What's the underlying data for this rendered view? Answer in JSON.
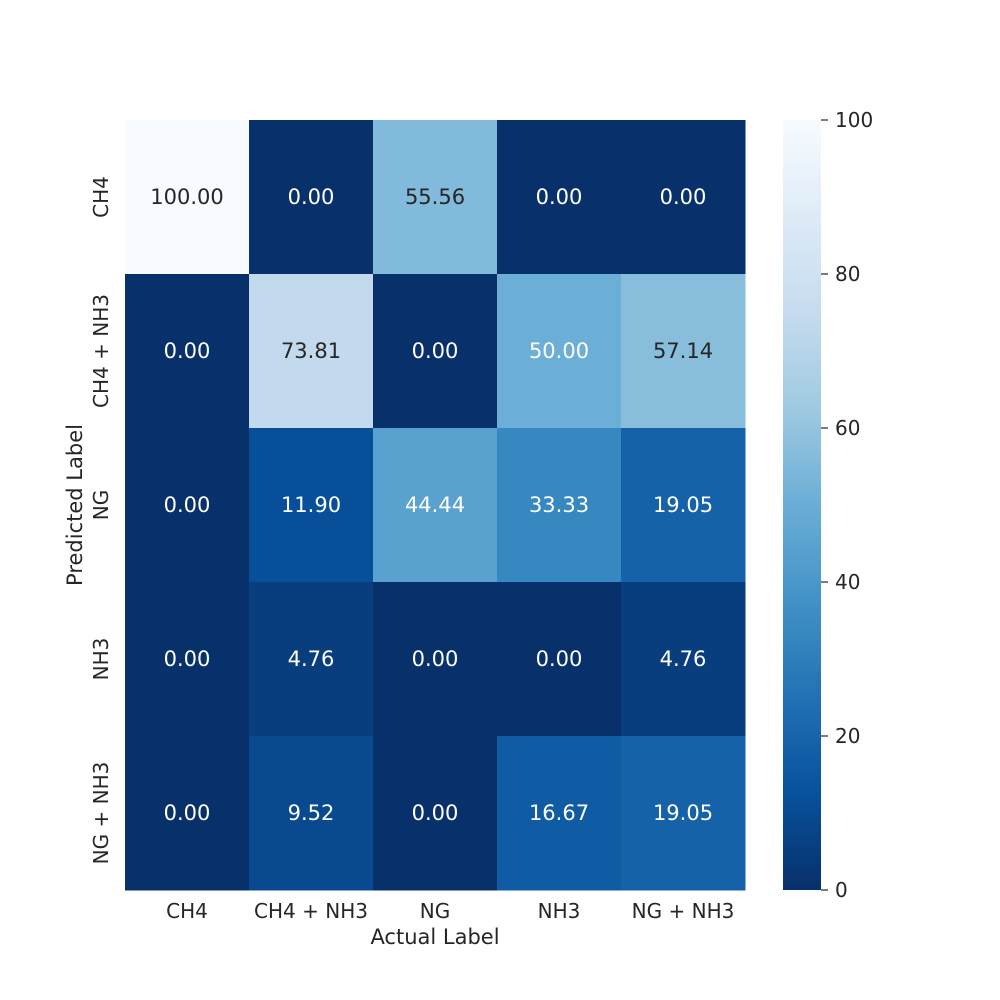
{
  "chart_data": {
    "type": "heatmap",
    "title": "",
    "xlabel": "Actual Label",
    "ylabel": "Predicted Label",
    "x_categories": [
      "CH4",
      "CH4 + NH3",
      "NG",
      "NH3",
      "NG + NH3"
    ],
    "y_categories": [
      "CH4",
      "CH4 + NH3",
      "NG",
      "NH3",
      "NG + NH3"
    ],
    "values": [
      [
        100.0,
        0.0,
        55.56,
        0.0,
        0.0
      ],
      [
        0.0,
        73.81,
        0.0,
        50.0,
        57.14
      ],
      [
        0.0,
        11.9,
        44.44,
        33.33,
        19.05
      ],
      [
        0.0,
        4.76,
        0.0,
        0.0,
        4.76
      ],
      [
        0.0,
        9.52,
        0.0,
        16.67,
        19.05
      ]
    ],
    "value_format_decimals": 2,
    "colormap": "Blues_r",
    "vmin": 0,
    "vmax": 100,
    "colorbar_ticks": [
      0,
      20,
      40,
      60,
      80,
      100
    ],
    "grid": false,
    "legend": "colorbar right"
  }
}
